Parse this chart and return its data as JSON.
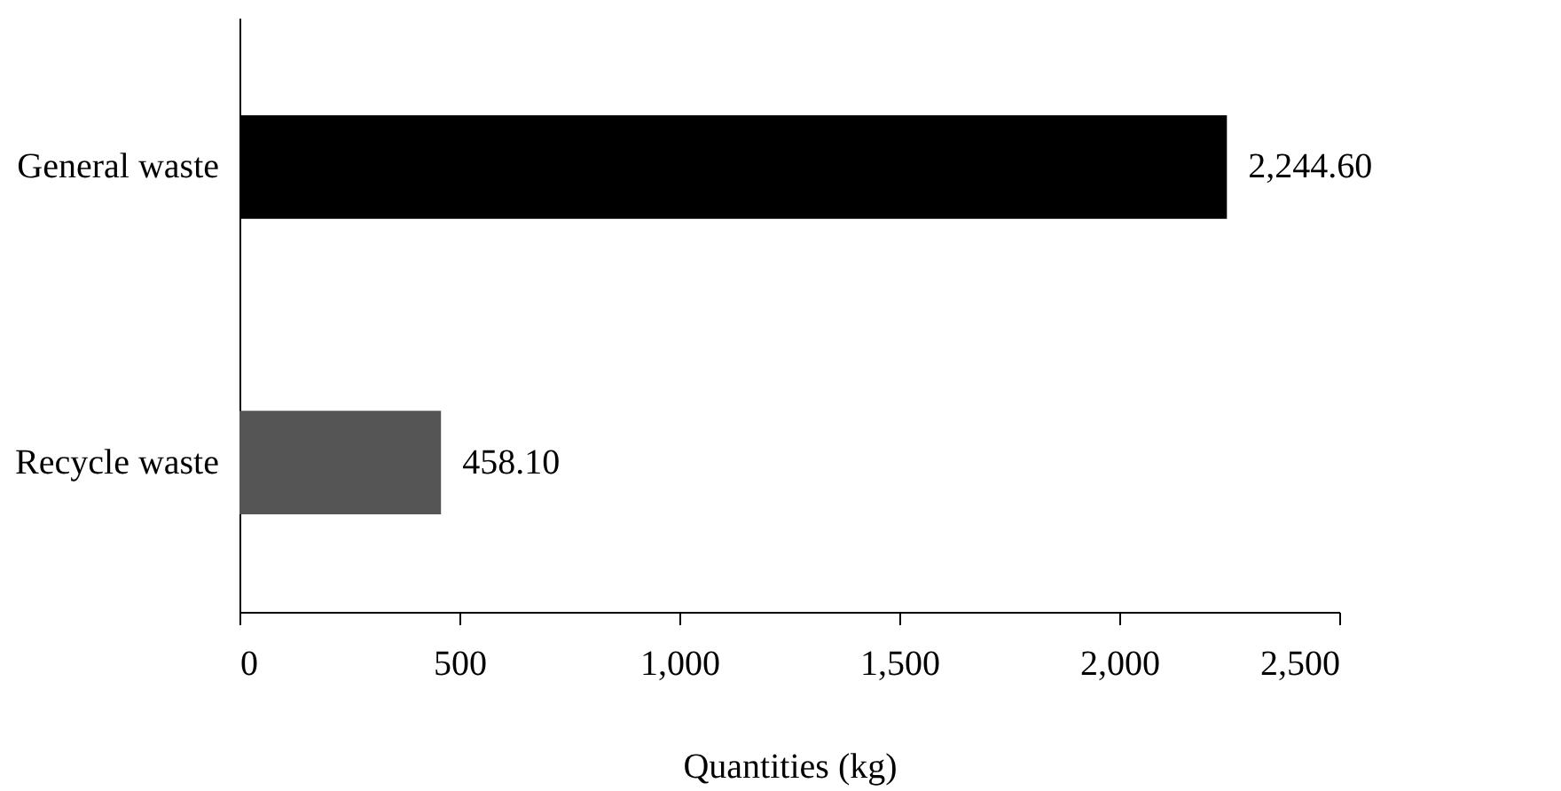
{
  "chart_data": {
    "type": "bar",
    "orientation": "horizontal",
    "xlabel": "Quantities (kg)",
    "categories": [
      "General waste",
      "Recycle waste"
    ],
    "values": [
      2244.6,
      458.1
    ],
    "value_labels": [
      "2,244.60",
      "458.10"
    ],
    "colors": [
      "#000000",
      "#555555"
    ],
    "xlim": [
      0,
      2500
    ],
    "xticks": [
      0,
      500,
      {
        "value": 1000,
        "label": "1,000"
      },
      {
        "value": 1500,
        "label": "1,500"
      },
      {
        "value": 2000,
        "label": "2,000"
      },
      {
        "value": 2500,
        "label": "2,500"
      }
    ],
    "grid": false
  }
}
